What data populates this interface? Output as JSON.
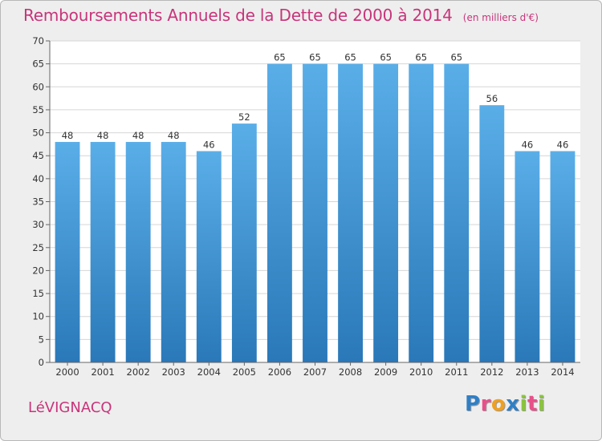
{
  "header": {
    "title": "Remboursements Annuels de la Dette de 2000 à 2014",
    "subtitle": "(en milliers d'€)"
  },
  "footer": {
    "commune": "LéVIGNACQ",
    "logo": "Proxiti"
  },
  "colors": {
    "title": "#c8347a",
    "bar_top": "#5aaee8",
    "bar_bottom": "#2a78b8",
    "plot_bg": "#ffffff",
    "frame_bg": "#eeeeee",
    "logo_letters": [
      "#2f7fc6",
      "#e8508a",
      "#f0a020",
      "#2f7fc6",
      "#8ac43c",
      "#e8508a",
      "#8ac43c"
    ]
  },
  "chart_data": {
    "type": "bar",
    "title": "Remboursements Annuels de la Dette de 2000 à 2014",
    "subtitle": "(en milliers d'€)",
    "xlabel": "",
    "ylabel": "",
    "categories": [
      "2000",
      "2001",
      "2002",
      "2003",
      "2004",
      "2005",
      "2006",
      "2007",
      "2008",
      "2009",
      "2010",
      "2011",
      "2012",
      "2013",
      "2014"
    ],
    "values": [
      48,
      48,
      48,
      48,
      46,
      52,
      65,
      65,
      65,
      65,
      65,
      65,
      56,
      46,
      46
    ],
    "ylim": [
      0,
      70
    ],
    "yticks": [
      0,
      5,
      10,
      15,
      20,
      25,
      30,
      35,
      40,
      45,
      50,
      55,
      60,
      65,
      70
    ],
    "grid": true,
    "data_labels": true
  }
}
